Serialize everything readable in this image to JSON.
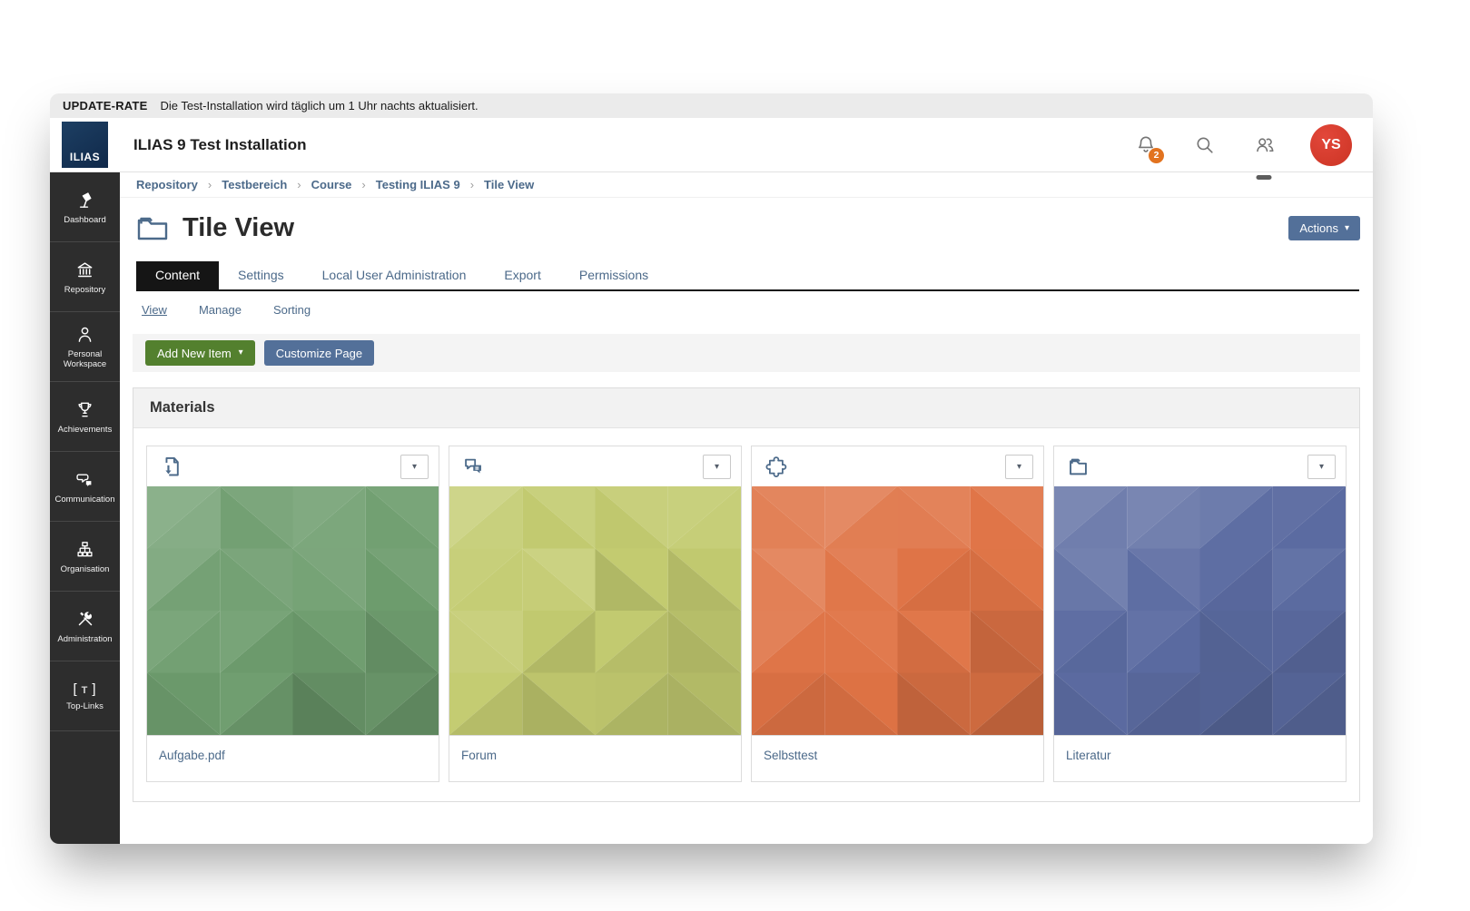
{
  "update_bar": {
    "label": "UPDATE-RATE",
    "message": "Die Test-Installation wird täglich um 1 Uhr nachts aktualisiert."
  },
  "header": {
    "logo_text": "ILIAS",
    "app_title": "ILIAS 9 Test Installation",
    "notification_count": "2",
    "avatar_initials": "YS",
    "icons": [
      "bell-icon",
      "search-icon",
      "online-users-icon"
    ]
  },
  "sidebar": {
    "items": [
      {
        "label": "Dashboard",
        "icon": "desk-lamp-icon"
      },
      {
        "label": "Repository",
        "icon": "bank-icon"
      },
      {
        "label": "Personal Workspace",
        "icon": "person-icon"
      },
      {
        "label": "Achievements",
        "icon": "trophy-icon"
      },
      {
        "label": "Communication",
        "icon": "chat-bubbles-icon"
      },
      {
        "label": "Organisation",
        "icon": "org-chart-icon"
      },
      {
        "label": "Administration",
        "icon": "tools-icon"
      },
      {
        "label": "Top-Links",
        "icon": "brackets-icon"
      }
    ]
  },
  "breadcrumb": {
    "separator": "›",
    "items": [
      "Repository",
      "Testbereich",
      "Course",
      "Testing ILIAS 9",
      "Tile View"
    ]
  },
  "page": {
    "title": "Tile View",
    "icon": "folder-icon",
    "actions_label": "Actions"
  },
  "tabs": {
    "items": [
      {
        "label": "Content",
        "active": true
      },
      {
        "label": "Settings",
        "active": false
      },
      {
        "label": "Local User Administration",
        "active": false
      },
      {
        "label": "Export",
        "active": false
      },
      {
        "label": "Permissions",
        "active": false
      }
    ]
  },
  "subtabs": {
    "items": [
      {
        "label": "View",
        "active": true
      },
      {
        "label": "Manage",
        "active": false
      },
      {
        "label": "Sorting",
        "active": false
      }
    ]
  },
  "toolbar": {
    "add_new_item_label": "Add New Item",
    "customize_page_label": "Customize Page"
  },
  "materials": {
    "title": "Materials",
    "tiles": [
      {
        "label": "Aufgabe.pdf",
        "icon": "file-download-icon",
        "color": "#6e9d6e"
      },
      {
        "label": "Forum",
        "icon": "forum-icon",
        "color": "#c3cb70"
      },
      {
        "label": "Selbsttest",
        "icon": "puzzle-icon",
        "color": "#df7345"
      },
      {
        "label": "Literatur",
        "icon": "folder-icon",
        "color": "#5b6ba1"
      }
    ]
  },
  "colors": {
    "accent_blue": "#4c6a8a",
    "button_blue": "#537099",
    "button_green": "#53802e",
    "badge_orange": "#e2731f",
    "avatar_red": "#d63a28",
    "tab_active": "#151515",
    "sidebar_bg": "#2d2d2d"
  }
}
